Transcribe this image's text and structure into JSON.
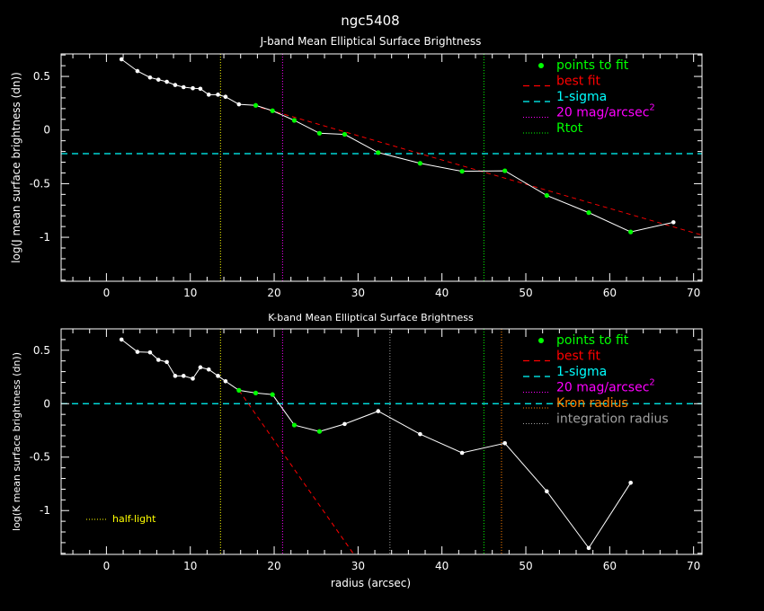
{
  "chart_data": [
    {
      "type": "line",
      "suptitle": "ngc5408",
      "title": "J-band Mean Elliptical Surface Brightness",
      "xlabel": "",
      "ylabel": "log(J mean surface brightness (dn))",
      "xlim": [
        -5.4,
        71
      ],
      "ylim": [
        -1.41,
        0.71
      ],
      "xticks": [
        0,
        10,
        20,
        30,
        40,
        50,
        60,
        70
      ],
      "xtick_labels": [
        "0",
        "10",
        "20",
        "30",
        "40",
        "50",
        "60",
        "70"
      ],
      "yticks": [
        0.5,
        0,
        -0.5,
        -1
      ],
      "ytick_labels": [
        "0.5",
        "0",
        "-0.5",
        "-1"
      ],
      "x": [
        1.8,
        3.7,
        5.2,
        6.2,
        7.2,
        8.2,
        9.2,
        10.3,
        11.2,
        12.2,
        13.3,
        14.2,
        15.8,
        17.8,
        19.8,
        22.4,
        25.4,
        28.4,
        32.4,
        37.4,
        42.4,
        47.5,
        52.5,
        57.5,
        62.5,
        67.6
      ],
      "y": [
        0.66,
        0.55,
        0.49,
        0.47,
        0.45,
        0.42,
        0.4,
        0.39,
        0.385,
        0.33,
        0.33,
        0.31,
        0.24,
        0.23,
        0.18,
        0.09,
        -0.03,
        -0.04,
        -0.21,
        -0.31,
        -0.385,
        -0.38,
        -0.61,
        -0.77,
        -0.95,
        -0.86
      ],
      "fit_points": [
        false,
        false,
        false,
        false,
        false,
        false,
        false,
        false,
        false,
        false,
        false,
        false,
        false,
        true,
        true,
        true,
        true,
        true,
        true,
        true,
        true,
        true,
        true,
        true,
        true,
        false
      ],
      "best_fit": [
        [
          17.5,
          0.23
        ],
        [
          71,
          -0.98
        ]
      ],
      "sigma_level": -0.22,
      "vlines": [
        {
          "x": 13.6,
          "color": "#ffff00",
          "name": "half-light"
        },
        {
          "x": 21.0,
          "color": "#ff00ff",
          "name": "20 mag/arcsec2"
        },
        {
          "x": 45.0,
          "color": "#00ff00",
          "name": "Rtot"
        }
      ],
      "legend": {
        "placement": "top-right",
        "entries": [
          {
            "label": "points to fit",
            "color": "#00ff00",
            "style": "dot"
          },
          {
            "label": "best fit",
            "color": "#ff0000",
            "style": "dash"
          },
          {
            "label": "1-sigma",
            "color": "#00ffff",
            "style": "dash"
          },
          {
            "label": "20 mag/arcsec",
            "sup": "2",
            "color": "#ff00ff",
            "style": "dot-line"
          },
          {
            "label": "Rtot",
            "color": "#00ff00",
            "style": "dot-line"
          }
        ]
      }
    },
    {
      "type": "line",
      "title": "K-band Mean Elliptical Surface Brightness",
      "xlabel": "radius (arcsec)",
      "ylabel": "log(K mean surface brightness (dn))",
      "xlim": [
        -5.4,
        71
      ],
      "ylim": [
        -1.41,
        0.7
      ],
      "xticks": [
        0,
        10,
        20,
        30,
        40,
        50,
        60,
        70
      ],
      "xtick_labels": [
        "0",
        "10",
        "20",
        "30",
        "40",
        "50",
        "60",
        "70"
      ],
      "yticks": [
        0.5,
        0,
        -0.5,
        -1
      ],
      "ytick_labels": [
        "0.5",
        "0",
        "-0.5",
        "-1"
      ],
      "x": [
        1.8,
        3.7,
        5.2,
        6.2,
        7.2,
        8.2,
        9.2,
        10.3,
        11.2,
        12.2,
        13.3,
        14.2,
        15.8,
        17.8,
        19.8,
        22.4,
        25.4,
        28.4,
        32.4,
        37.4,
        42.4,
        47.5,
        52.5,
        57.5,
        62.5
      ],
      "y": [
        0.6,
        0.485,
        0.48,
        0.41,
        0.39,
        0.26,
        0.26,
        0.235,
        0.34,
        0.32,
        0.26,
        0.21,
        0.125,
        0.1,
        0.085,
        -0.2,
        -0.26,
        -0.19,
        -0.07,
        -0.285,
        -0.46,
        -0.37,
        -0.82,
        -1.35,
        -0.74
      ],
      "fit_points": [
        false,
        false,
        false,
        false,
        false,
        false,
        false,
        false,
        false,
        false,
        false,
        false,
        true,
        true,
        true,
        true,
        true,
        false,
        false,
        false,
        false,
        false,
        false,
        false,
        false
      ],
      "best_fit": [
        [
          15.8,
          0.125
        ],
        [
          29.5,
          -1.41
        ]
      ],
      "sigma_level": 0.0,
      "vlines": [
        {
          "x": 13.6,
          "color": "#ffff00",
          "name": "half-light"
        },
        {
          "x": 21.0,
          "color": "#ff00ff",
          "name": "20 mag/arcsec2"
        },
        {
          "x": 33.8,
          "color": "#a0a0a0",
          "name": "integration radius"
        },
        {
          "x": 45.0,
          "color": "#00ff00",
          "name": "Rtot"
        },
        {
          "x": 47.1,
          "color": "#ff8000",
          "name": "Kron radius"
        }
      ],
      "annotation": {
        "label": "half-light",
        "color": "#ffff00"
      },
      "legend": {
        "placement": "top-right",
        "entries": [
          {
            "label": "points to fit",
            "color": "#00ff00",
            "style": "dot"
          },
          {
            "label": "best fit",
            "color": "#ff0000",
            "style": "dash"
          },
          {
            "label": "1-sigma",
            "color": "#00ffff",
            "style": "dash"
          },
          {
            "label": "20 mag/arcsec",
            "sup": "2",
            "color": "#ff00ff",
            "style": "dot-line"
          },
          {
            "label": "Kron radius",
            "color": "#ff8000",
            "style": "dot-line"
          },
          {
            "label": "integration radius",
            "color": "#a0a0a0",
            "style": "dot-line"
          }
        ]
      }
    }
  ]
}
